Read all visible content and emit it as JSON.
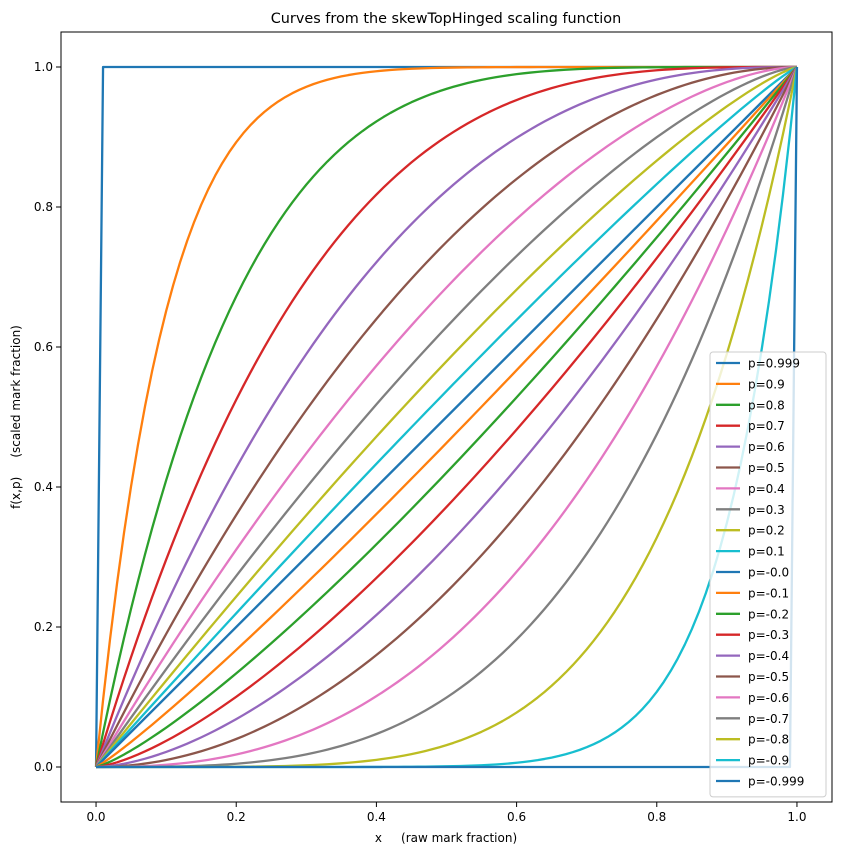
{
  "chart_data": {
    "type": "line",
    "title": "Curves from the skewTopHinged scaling function",
    "xlabel": "x     (raw mark fraction)",
    "ylabel": "f(x,p)     (scaled mark fraction)",
    "xlim": [
      -0.05,
      1.05
    ],
    "ylim": [
      -0.05,
      1.05
    ],
    "x_ticks": [
      "0.0",
      "0.2",
      "0.4",
      "0.6",
      "0.8",
      "1.0"
    ],
    "y_ticks": [
      "0.0",
      "0.2",
      "0.4",
      "0.6",
      "0.8",
      "1.0"
    ],
    "grid": false,
    "legend_position": "lower-right",
    "x_sampling": {
      "start": 0,
      "end": 1,
      "count": 101
    },
    "series": [
      {
        "name": "p=0.999",
        "p": 0.999,
        "color": "#1f77b4"
      },
      {
        "name": "p=0.9",
        "p": 0.9,
        "color": "#ff7f0e"
      },
      {
        "name": "p=0.8",
        "p": 0.8,
        "color": "#2ca02c"
      },
      {
        "name": "p=0.7",
        "p": 0.7,
        "color": "#d62728"
      },
      {
        "name": "p=0.6",
        "p": 0.6,
        "color": "#9467bd"
      },
      {
        "name": "p=0.5",
        "p": 0.5,
        "color": "#8c564b"
      },
      {
        "name": "p=0.4",
        "p": 0.4,
        "color": "#e377c2"
      },
      {
        "name": "p=0.3",
        "p": 0.3,
        "color": "#7f7f7f"
      },
      {
        "name": "p=0.2",
        "p": 0.2,
        "color": "#bcbd22"
      },
      {
        "name": "p=0.1",
        "p": 0.1,
        "color": "#17becf"
      },
      {
        "name": "p=-0.0",
        "p": 0.0,
        "color": "#1f77b4"
      },
      {
        "name": "p=-0.1",
        "p": -0.1,
        "color": "#ff7f0e"
      },
      {
        "name": "p=-0.2",
        "p": -0.2,
        "color": "#2ca02c"
      },
      {
        "name": "p=-0.3",
        "p": -0.3,
        "color": "#d62728"
      },
      {
        "name": "p=-0.4",
        "p": -0.4,
        "color": "#9467bd"
      },
      {
        "name": "p=-0.5",
        "p": -0.5,
        "color": "#8c564b"
      },
      {
        "name": "p=-0.6",
        "p": -0.6,
        "color": "#e377c2"
      },
      {
        "name": "p=-0.7",
        "p": -0.7,
        "color": "#7f7f7f"
      },
      {
        "name": "p=-0.8",
        "p": -0.8,
        "color": "#bcbd22"
      },
      {
        "name": "p=-0.9",
        "p": -0.9,
        "color": "#17becf"
      },
      {
        "name": "p=-0.999",
        "p": -0.999,
        "color": "#1f77b4"
      }
    ]
  }
}
